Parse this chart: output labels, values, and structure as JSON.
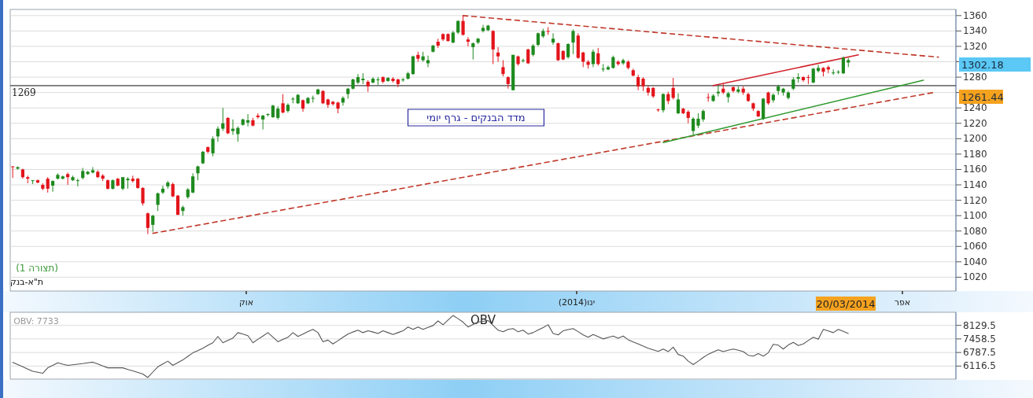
{
  "chart_data": [
    {
      "type": "candlestick",
      "grid": "y",
      "categories": [
        null,
        null,
        null,
        null,
        null,
        null,
        null,
        null,
        null,
        null,
        null,
        null,
        null,
        null,
        null,
        null,
        null,
        null,
        null,
        null,
        null,
        null,
        null,
        null,
        null,
        null,
        null,
        null,
        null,
        null,
        null,
        null,
        null,
        null,
        null,
        null,
        null,
        null,
        null,
        null,
        null,
        null,
        null,
        null,
        null,
        null,
        null,
        null,
        null,
        null,
        null,
        null,
        null,
        null,
        null,
        null,
        null,
        null,
        null,
        null,
        null,
        null,
        null,
        null,
        null,
        null,
        null,
        null,
        null,
        null,
        null,
        null,
        null,
        null,
        null,
        null,
        null,
        null,
        null,
        null,
        null,
        null,
        null,
        null,
        null,
        null,
        null,
        null,
        null,
        null,
        null,
        null,
        null,
        null,
        null,
        null,
        null,
        null,
        null,
        null,
        null,
        null,
        null,
        null,
        null,
        null,
        null,
        null,
        null,
        null,
        null,
        null,
        null,
        null,
        null,
        null,
        null,
        null,
        null,
        null,
        null,
        null,
        null,
        null,
        null,
        null,
        null,
        null,
        null,
        null,
        null,
        null,
        null,
        null,
        null,
        null,
        null,
        null,
        null,
        null,
        null,
        null,
        null,
        null,
        null,
        null,
        null,
        null,
        null,
        null,
        null,
        null,
        null,
        null,
        null,
        null,
        null,
        null,
        null,
        null,
        null,
        null,
        null,
        null,
        null,
        null,
        null,
        null,
        null,
        null,
        null,
        null,
        null,
        null,
        null,
        null,
        null,
        null,
        null,
        null,
        null,
        null,
        null,
        null,
        null,
        null,
        null,
        null,
        null
      ],
      "ohlc": [
        [
          1164,
          1164,
          1149,
          1163
        ],
        [
          1161,
          1164,
          1160,
          1163
        ],
        [
          1160,
          1161,
          1148,
          1150
        ],
        [
          1150,
          1152,
          1142,
          1148
        ],
        [
          1145,
          1146,
          1141,
          1146
        ],
        [
          1146,
          1147,
          1142,
          1143
        ],
        [
          1140,
          1142,
          1133,
          1135
        ],
        [
          1148,
          1150,
          1130,
          1135
        ],
        [
          1139,
          1146,
          1131,
          1145
        ],
        [
          1148,
          1155,
          1147,
          1153
        ],
        [
          1148,
          1152,
          1147,
          1151
        ],
        [
          1154,
          1156,
          1140,
          1150
        ],
        [
          1146,
          1152,
          1145,
          1150
        ],
        [
          1145,
          1148,
          1138,
          1146
        ],
        [
          1149,
          1162,
          1147,
          1158
        ],
        [
          1154,
          1158,
          1153,
          1157
        ],
        [
          1156,
          1163,
          1155,
          1159
        ],
        [
          1157,
          1159,
          1149,
          1150
        ],
        [
          1152,
          1154,
          1145,
          1148
        ],
        [
          1146,
          1147,
          1134,
          1135
        ],
        [
          1135,
          1147,
          1134,
          1146
        ],
        [
          1148,
          1149,
          1138,
          1139
        ],
        [
          1135,
          1150,
          1133,
          1150
        ],
        [
          1146,
          1150,
          1135,
          1148
        ],
        [
          1148,
          1152,
          1143,
          1145
        ],
        [
          1148,
          1149,
          1135,
          1136
        ],
        [
          1136,
          1137,
          1113,
          1116
        ],
        [
          1103,
          1104,
          1076,
          1084
        ],
        [
          1088,
          1101,
          1079,
          1100
        ],
        [
          1114,
          1130,
          1106,
          1129
        ],
        [
          1130,
          1139,
          1128,
          1135
        ],
        [
          1138,
          1145,
          1135,
          1143
        ],
        [
          1141,
          1143,
          1124,
          1125
        ],
        [
          1126,
          1127,
          1101,
          1101
        ],
        [
          1106,
          1113,
          1100,
          1111
        ],
        [
          1124,
          1136,
          1122,
          1134
        ],
        [
          1130,
          1155,
          1129,
          1151
        ],
        [
          1155,
          1165,
          1146,
          1164
        ],
        [
          1168,
          1184,
          1167,
          1183
        ],
        [
          1189,
          1190,
          1181,
          1183
        ],
        [
          1181,
          1203,
          1177,
          1200
        ],
        [
          1203,
          1216,
          1196,
          1213
        ],
        [
          1213,
          1240,
          1210,
          1220
        ],
        [
          1227,
          1228,
          1206,
          1207
        ],
        [
          1210,
          1225,
          1205,
          1213
        ],
        [
          1206,
          1216,
          1196,
          1214
        ],
        [
          1218,
          1226,
          1217,
          1225
        ],
        [
          1221,
          1232,
          1216,
          1224
        ],
        [
          1224,
          1227,
          1216,
          1217
        ],
        [
          1230,
          1233,
          1226,
          1228
        ],
        [
          1225,
          1231,
          1212,
          1230
        ],
        [
          1231,
          1233,
          1229,
          1232
        ],
        [
          1228,
          1244,
          1227,
          1243
        ],
        [
          1227,
          1242,
          1225,
          1239
        ],
        [
          1246,
          1258,
          1233,
          1234
        ],
        [
          1236,
          1246,
          1234,
          1244
        ],
        [
          1251,
          1254,
          1246,
          1252
        ],
        [
          1246,
          1258,
          1245,
          1257
        ],
        [
          1250,
          1251,
          1235,
          1239
        ],
        [
          1246,
          1254,
          1245,
          1253
        ],
        [
          1252,
          1256,
          1247,
          1253
        ],
        [
          1258,
          1265,
          1257,
          1264
        ],
        [
          1262,
          1263,
          1245,
          1246
        ],
        [
          1251,
          1252,
          1240,
          1244
        ],
        [
          1248,
          1249,
          1243,
          1245
        ],
        [
          1247,
          1248,
          1233,
          1239
        ],
        [
          1247,
          1255,
          1243,
          1253
        ],
        [
          1258,
          1266,
          1252,
          1265
        ],
        [
          1265,
          1278,
          1264,
          1277
        ],
        [
          1273,
          1284,
          1271,
          1280
        ],
        [
          1276,
          1285,
          1271,
          1278
        ],
        [
          1274,
          1276,
          1261,
          1268
        ],
        [
          1273,
          1280,
          1272,
          1278
        ],
        [
          1276,
          1280,
          1270,
          1277
        ],
        [
          1280,
          1281,
          1272,
          1274
        ],
        [
          1275,
          1280,
          1274,
          1279
        ],
        [
          1278,
          1280,
          1273,
          1275
        ],
        [
          1277,
          1278,
          1267,
          1271
        ],
        [
          1276,
          1279,
          1274,
          1277
        ],
        [
          1278,
          1287,
          1277,
          1285
        ],
        [
          1284,
          1308,
          1283,
          1307
        ],
        [
          1309,
          1313,
          1300,
          1304
        ],
        [
          1302,
          1313,
          1300,
          1307
        ],
        [
          1298,
          1308,
          1293,
          1302
        ],
        [
          1313,
          1322,
          1312,
          1321
        ],
        [
          1326,
          1330,
          1318,
          1321
        ],
        [
          1336,
          1337,
          1327,
          1329
        ],
        [
          1336,
          1337,
          1326,
          1327
        ],
        [
          1325,
          1340,
          1324,
          1338
        ],
        [
          1338,
          1354,
          1336,
          1353
        ],
        [
          1353,
          1360,
          1334,
          1335
        ],
        [
          1329,
          1332,
          1320,
          1326
        ],
        [
          1319,
          1325,
          1303,
          1324
        ],
        [
          1325,
          1331,
          1323,
          1330
        ],
        [
          1340,
          1348,
          1338,
          1344
        ],
        [
          1341,
          1348,
          1340,
          1347
        ],
        [
          1340,
          1341,
          1297,
          1316
        ],
        [
          1312,
          1319,
          1300,
          1307
        ],
        [
          1293,
          1302,
          1281,
          1284
        ],
        [
          1280,
          1281,
          1265,
          1271
        ],
        [
          1263,
          1309,
          1263,
          1309
        ],
        [
          1307,
          1308,
          1295,
          1297
        ],
        [
          1301,
          1304,
          1299,
          1302
        ],
        [
          1316,
          1317,
          1297,
          1298
        ],
        [
          1309,
          1323,
          1307,
          1321
        ],
        [
          1322,
          1338,
          1320,
          1337
        ],
        [
          1333,
          1343,
          1331,
          1340
        ],
        [
          1340,
          1345,
          1335,
          1339
        ],
        [
          1325,
          1337,
          1322,
          1330
        ],
        [
          1324,
          1325,
          1301,
          1302
        ],
        [
          1314,
          1315,
          1302,
          1303
        ],
        [
          1306,
          1324,
          1304,
          1323
        ],
        [
          1325,
          1342,
          1310,
          1340
        ],
        [
          1334,
          1337,
          1304,
          1305
        ],
        [
          1312,
          1313,
          1293,
          1300
        ],
        [
          1300,
          1302,
          1291,
          1296
        ],
        [
          1297,
          1316,
          1293,
          1313
        ],
        [
          1311,
          1318,
          1295,
          1297
        ],
        [
          1290,
          1297,
          1287,
          1291
        ],
        [
          1290,
          1295,
          1289,
          1293
        ],
        [
          1292,
          1308,
          1291,
          1306
        ],
        [
          1300,
          1302,
          1295,
          1297
        ],
        [
          1298,
          1304,
          1296,
          1302
        ],
        [
          1300,
          1302,
          1290,
          1292
        ],
        [
          1289,
          1291,
          1281,
          1282
        ],
        [
          1280,
          1283,
          1263,
          1268
        ],
        [
          1278,
          1280,
          1262,
          1268
        ],
        [
          1266,
          1269,
          1256,
          1260
        ],
        [
          1266,
          1267,
          1253,
          1255
        ],
        [
          1238,
          1239,
          1235,
          1237
        ],
        [
          1237,
          1259,
          1234,
          1258
        ],
        [
          1258,
          1261,
          1245,
          1249
        ],
        [
          1266,
          1279,
          1251,
          1253
        ],
        [
          1233,
          1259,
          1232,
          1251
        ],
        [
          1239,
          1240,
          1232,
          1233
        ],
        [
          1235,
          1237,
          1220,
          1227
        ],
        [
          1210,
          1228,
          1205,
          1226
        ],
        [
          1217,
          1233,
          1214,
          1226
        ],
        [
          1225,
          1238,
          1222,
          1236
        ],
        [
          1254,
          1259,
          1248,
          1253
        ],
        [
          1249,
          1258,
          1248,
          1256
        ],
        [
          1259,
          1269,
          1255,
          1261
        ],
        [
          1265,
          1271,
          1258,
          1260
        ],
        [
          1254,
          1261,
          1247,
          1259
        ],
        [
          1267,
          1268,
          1260,
          1262
        ],
        [
          1261,
          1268,
          1259,
          1264
        ],
        [
          1265,
          1268,
          1257,
          1260
        ],
        [
          1258,
          1260,
          1248,
          1249
        ],
        [
          1246,
          1247,
          1236,
          1239
        ],
        [
          1236,
          1237,
          1228,
          1229
        ],
        [
          1226,
          1253,
          1224,
          1252
        ],
        [
          1260,
          1261,
          1244,
          1246
        ],
        [
          1250,
          1259,
          1247,
          1257
        ],
        [
          1262,
          1270,
          1257,
          1268
        ],
        [
          1260,
          1266,
          1256,
          1265
        ],
        [
          1253,
          1262,
          1251,
          1260
        ],
        [
          1265,
          1280,
          1263,
          1277
        ],
        [
          1278,
          1285,
          1273,
          1280
        ],
        [
          1280,
          1281,
          1274,
          1276
        ],
        [
          1280,
          1283,
          1271,
          1279
        ],
        [
          1273,
          1292,
          1272,
          1291
        ],
        [
          1288,
          1296,
          1286,
          1292
        ],
        [
          1292,
          1293,
          1281,
          1287
        ],
        [
          1293,
          1295,
          1285,
          1290
        ],
        [
          1285,
          1290,
          1283,
          1286
        ],
        [
          1286,
          1289,
          1284,
          1287
        ],
        [
          1285,
          1307,
          1284,
          1305
        ],
        [
          1299,
          1305,
          1293,
          1302.18
        ],
        null,
        null,
        null,
        null,
        null,
        null,
        null,
        null,
        null,
        null,
        null,
        null,
        null,
        null,
        null,
        null,
        null,
        null,
        null,
        null,
        null
      ],
      "series": [
        {
          "type": "line",
          "color": "#c0392b",
          "line_style": "dashed",
          "values": [
            null,
            null,
            null,
            null,
            null,
            null,
            null,
            null,
            null,
            null,
            null,
            null,
            null,
            null,
            null,
            null,
            null,
            null,
            null,
            null,
            null,
            null,
            null,
            null,
            null,
            null,
            null,
            null,
            1077,
            null,
            null,
            null,
            null,
            null,
            null,
            null,
            null,
            null,
            null,
            null,
            null,
            null,
            null,
            null,
            null,
            null,
            null,
            null,
            null,
            null,
            null,
            null,
            null,
            null,
            null,
            null,
            null,
            null,
            null,
            null,
            null,
            null,
            null,
            null,
            null,
            null,
            null,
            null,
            null,
            null,
            null,
            null,
            null,
            null,
            null,
            null,
            null,
            null,
            null,
            null,
            null,
            null,
            null,
            null,
            null,
            null,
            null,
            null,
            null,
            null,
            null,
            null,
            null,
            null,
            null,
            null,
            null,
            null,
            null,
            null,
            null,
            null,
            null,
            null,
            null,
            null,
            null,
            null,
            null,
            null,
            null,
            null,
            null,
            null,
            null,
            null,
            null,
            null,
            null,
            null,
            null,
            null,
            null,
            null,
            null,
            null,
            null,
            null,
            null,
            null,
            null,
            null,
            null,
            null,
            null,
            null,
            null,
            null,
            null,
            null,
            null,
            null,
            null,
            null,
            null,
            null,
            null,
            null,
            null,
            null,
            null,
            null,
            null,
            null,
            null,
            null,
            null,
            null,
            null,
            null,
            null,
            null,
            null,
            null,
            null,
            null,
            null,
            null,
            null,
            null,
            null,
            null,
            null,
            null,
            null,
            null,
            null,
            null,
            null,
            null,
            null,
            null,
            null,
            null,
            1260,
            null,
            null,
            null,
            null
          ]
        },
        {
          "type": "line",
          "color": "#c0392b",
          "line_style": "dashed",
          "values": [
            null,
            null,
            null,
            null,
            null,
            null,
            null,
            null,
            null,
            null,
            null,
            null,
            null,
            null,
            null,
            null,
            null,
            null,
            null,
            null,
            null,
            null,
            null,
            null,
            null,
            null,
            null,
            null,
            null,
            null,
            null,
            null,
            null,
            null,
            null,
            null,
            null,
            null,
            null,
            null,
            null,
            null,
            null,
            null,
            null,
            null,
            null,
            null,
            null,
            null,
            null,
            null,
            null,
            null,
            null,
            null,
            null,
            null,
            null,
            null,
            null,
            null,
            null,
            null,
            null,
            null,
            null,
            null,
            null,
            null,
            null,
            null,
            null,
            null,
            null,
            null,
            null,
            null,
            null,
            null,
            null,
            null,
            null,
            null,
            null,
            null,
            null,
            null,
            null,
            null,
            1360,
            null,
            null,
            null,
            null,
            null,
            null,
            null,
            null,
            null,
            null,
            null,
            null,
            null,
            null,
            null,
            null,
            null,
            null,
            null,
            null,
            null,
            null,
            null,
            null,
            null,
            null,
            null,
            null,
            null,
            null,
            null,
            null,
            null,
            null,
            null,
            null,
            null,
            null,
            null,
            null,
            null,
            null,
            null,
            null,
            null,
            null,
            null,
            null,
            null,
            null,
            null,
            null,
            null,
            null,
            null,
            null,
            null,
            null,
            null,
            null,
            null,
            null,
            null,
            null,
            null,
            null,
            null,
            null,
            null,
            null,
            null,
            null,
            null,
            null,
            null,
            null,
            null,
            null,
            null,
            null,
            null,
            null,
            null,
            null,
            null,
            null,
            null,
            null,
            null,
            null,
            null,
            null,
            null,
            null,
            1306,
            null,
            null,
            null
          ]
        },
        {
          "type": "line",
          "color": "#d0202a",
          "line_style": "solid",
          "values": [
            null,
            null,
            null,
            null,
            null,
            null,
            null,
            null,
            null,
            null,
            null,
            null,
            null,
            null,
            null,
            null,
            null,
            null,
            null,
            null,
            null,
            null,
            null,
            null,
            null,
            null,
            null,
            null,
            null,
            null,
            null,
            null,
            null,
            null,
            null,
            null,
            null,
            null,
            null,
            null,
            null,
            null,
            null,
            null,
            null,
            null,
            null,
            null,
            null,
            null,
            null,
            null,
            null,
            null,
            null,
            null,
            null,
            null,
            null,
            null,
            null,
            null,
            null,
            null,
            null,
            null,
            null,
            null,
            null,
            null,
            null,
            null,
            null,
            null,
            null,
            null,
            null,
            null,
            null,
            null,
            null,
            null,
            null,
            null,
            null,
            null,
            null,
            null,
            null,
            null,
            null,
            null,
            null,
            null,
            null,
            null,
            null,
            null,
            null,
            null,
            null,
            null,
            null,
            null,
            null,
            null,
            null,
            null,
            null,
            null,
            null,
            null,
            null,
            null,
            null,
            null,
            null,
            null,
            null,
            null,
            null,
            null,
            null,
            null,
            null,
            null,
            null,
            null,
            null,
            null,
            null,
            null,
            null,
            null,
            null,
            null,
            null,
            null,
            null,
            null,
            1269,
            null,
            null,
            null,
            null,
            null,
            null,
            null,
            null,
            null,
            null,
            null,
            null,
            null,
            null,
            null,
            null,
            null,
            null,
            null,
            null,
            null,
            null,
            null,
            null,
            null,
            null,
            null,
            null,
            1309,
            null,
            null,
            null,
            null,
            null,
            null,
            null,
            null,
            null,
            null,
            null,
            null,
            null,
            null,
            null,
            null,
            null,
            null,
            null
          ]
        },
        {
          "type": "line",
          "color": "#2e9a2e",
          "line_style": "solid",
          "values": [
            null,
            null,
            null,
            null,
            null,
            null,
            null,
            null,
            null,
            null,
            null,
            null,
            null,
            null,
            null,
            null,
            null,
            null,
            null,
            null,
            null,
            null,
            null,
            null,
            null,
            null,
            null,
            null,
            null,
            null,
            null,
            null,
            null,
            null,
            null,
            null,
            null,
            null,
            null,
            null,
            null,
            null,
            null,
            null,
            null,
            null,
            null,
            null,
            null,
            null,
            null,
            null,
            null,
            null,
            null,
            null,
            null,
            null,
            null,
            null,
            null,
            null,
            null,
            null,
            null,
            null,
            null,
            null,
            null,
            null,
            null,
            null,
            null,
            null,
            null,
            null,
            null,
            null,
            null,
            null,
            null,
            null,
            null,
            null,
            null,
            null,
            null,
            null,
            null,
            null,
            null,
            null,
            null,
            null,
            null,
            null,
            null,
            null,
            null,
            null,
            null,
            null,
            null,
            null,
            null,
            null,
            null,
            null,
            null,
            null,
            null,
            null,
            null,
            null,
            null,
            null,
            null,
            null,
            null,
            null,
            null,
            null,
            null,
            null,
            null,
            null,
            null,
            null,
            null,
            null,
            1195,
            null,
            null,
            null,
            null,
            null,
            null,
            null,
            null,
            null,
            null,
            null,
            null,
            null,
            null,
            null,
            null,
            null,
            null,
            null,
            null,
            null,
            null,
            null,
            null,
            null,
            null,
            null,
            null,
            null,
            null,
            null,
            null,
            null,
            null,
            null,
            null,
            null,
            null,
            null,
            null,
            null,
            null,
            null,
            null,
            null,
            null,
            null,
            null,
            null,
            null,
            null,
            1276,
            null,
            null,
            null,
            null,
            null,
            null
          ]
        }
      ],
      "ylim": [
        1002,
        1368
      ],
      "yticks": [
        1020,
        1040,
        1060,
        1080,
        1100,
        1120,
        1140,
        1160,
        1180,
        1200,
        1220,
        1240,
        {
          "value": 1260,
          "label": null
        },
        1280,
        {
          "value": 1300,
          "label": null
        },
        1320,
        1340,
        1360
      ],
      "ref_lines": [
        {
          "axis": "y",
          "value": 1269,
          "label": "1269",
          "color": "#404040"
        }
      ],
      "annotations": [
        "מדד הבנקים - גרף יומי",
        "(תצורה 1)",
        "ת\"א-בנק",
        "1302.18",
        "1261.44",
        "20/03/2014",
        "אוק",
        "ינו(2014)",
        "אפר"
      ]
    },
    {
      "type": "line",
      "title": "OBV",
      "color": "#555555",
      "grid": "y",
      "tick_labels": "y",
      "categories": [
        null,
        null,
        null,
        null,
        null,
        null,
        null,
        null,
        null,
        null,
        null,
        null,
        null,
        null,
        null,
        null,
        null,
        null,
        null,
        null,
        null,
        null,
        null,
        null,
        null,
        null,
        null,
        null,
        null,
        null,
        null,
        null,
        null,
        null,
        null,
        null,
        null,
        null,
        null,
        null,
        null,
        null,
        null,
        null,
        null,
        null,
        null,
        null,
        null,
        null,
        null,
        null,
        null,
        null,
        null,
        null,
        null,
        null,
        null,
        null,
        null,
        null,
        null,
        null,
        null,
        null,
        null,
        null,
        null,
        null,
        null,
        null,
        null,
        null,
        null,
        null,
        null,
        null,
        null,
        null,
        null,
        null,
        null,
        null,
        null,
        null,
        null,
        null,
        null,
        null,
        null,
        null,
        null,
        null,
        null,
        null,
        null,
        null,
        null,
        null,
        null,
        null,
        null,
        null,
        null,
        null,
        null,
        null,
        null,
        null,
        null,
        null,
        null,
        null,
        null,
        null,
        null,
        null,
        null,
        null,
        null,
        null,
        null,
        null,
        null,
        null,
        null,
        null,
        null,
        null,
        null,
        null,
        null,
        null,
        null,
        null,
        null,
        null,
        null,
        null,
        null,
        null,
        null,
        null,
        null,
        null,
        null,
        null,
        null,
        null,
        null,
        null,
        null,
        null,
        null,
        null,
        null,
        null,
        null,
        null,
        null,
        null,
        null,
        null,
        null,
        null,
        null,
        null,
        null,
        null,
        null,
        null,
        null,
        null,
        null,
        null,
        null,
        null,
        null,
        null,
        null,
        null,
        null,
        null,
        null,
        null,
        null,
        null,
        null
      ],
      "values": [
        6300,
        6190,
        6080,
        5970,
        5860,
        5810,
        5760,
        6030,
        6150,
        6280,
        6210,
        6150,
        6180,
        6210,
        6240,
        6280,
        6310,
        6220,
        6120,
        6030,
        6030,
        6030,
        6030,
        5950,
        5880,
        5800,
        5720,
        5550,
        5820,
        6080,
        6220,
        6360,
        6150,
        6290,
        6420,
        6600,
        6770,
        6880,
        7000,
        7140,
        7270,
        7580,
        7270,
        7390,
        7500,
        7770,
        7700,
        7620,
        7270,
        7440,
        7600,
        7770,
        7550,
        7320,
        7430,
        7540,
        7770,
        7580,
        7700,
        7820,
        7930,
        7770,
        7320,
        7400,
        7210,
        7370,
        7540,
        7700,
        7800,
        7890,
        7770,
        7860,
        7800,
        7730,
        7860,
        7770,
        7680,
        7770,
        7860,
        8050,
        7930,
        8050,
        7930,
        8030,
        8120,
        8350,
        8160,
        8390,
        8620,
        8460,
        8290,
        8050,
        8170,
        8290,
        8330,
        8370,
        8130,
        7890,
        7810,
        7930,
        7970,
        7810,
        7890,
        7700,
        7770,
        7900,
        8020,
        8160,
        7730,
        7660,
        7860,
        7920,
        7970,
        7820,
        7660,
        7540,
        7680,
        7570,
        7460,
        7530,
        7600,
        7490,
        7600,
        7420,
        7310,
        7210,
        7100,
        7000,
        6920,
        6840,
        6960,
        6830,
        7050,
        6690,
        6610,
        6360,
        6190,
        6360,
        6540,
        6700,
        6810,
        6920,
        6830,
        6900,
        6960,
        6900,
        6830,
        6650,
        6610,
        6730,
        6610,
        6770,
        7190,
        7150,
        6960,
        7160,
        7290,
        7130,
        7210,
        7380,
        7540,
        7440,
        7930,
        7850,
        7770,
        7930,
        7830,
        7730,
        null,
        null,
        null,
        null,
        null,
        null,
        null,
        null,
        null,
        null,
        null,
        null,
        null,
        null,
        null,
        null,
        null,
        null,
        null,
        null,
        null
      ],
      "ylim": [
        5470,
        8777
      ],
      "yticks": [
        6116.5,
        6787.5,
        7458.5,
        8129.5
      ],
      "annotations": [
        "OBV: 7733"
      ]
    }
  ]
}
